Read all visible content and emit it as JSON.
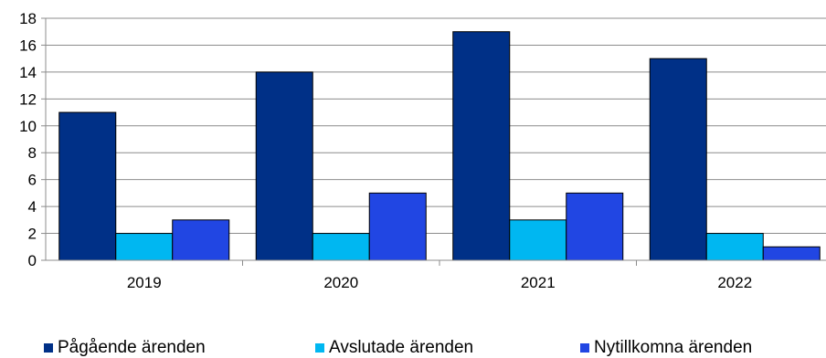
{
  "chart_data": {
    "type": "bar",
    "categories": [
      "2019",
      "2020",
      "2021",
      "2022"
    ],
    "series": [
      {
        "name": "Pågående ärenden",
        "values": [
          11,
          14,
          17,
          15
        ],
        "color": "#003087"
      },
      {
        "name": "Avslutade ärenden",
        "values": [
          2,
          2,
          3,
          2
        ],
        "color": "#00B7F1"
      },
      {
        "name": "Nytillkomna ärenden",
        "values": [
          3,
          5,
          5,
          1
        ],
        "color": "#2146E3"
      }
    ],
    "yticks": [
      "0",
      "2",
      "4",
      "6",
      "8",
      "10",
      "12",
      "14",
      "16",
      "18"
    ],
    "ylim": [
      0,
      18
    ],
    "grid": true,
    "legend_position": "bottom"
  }
}
